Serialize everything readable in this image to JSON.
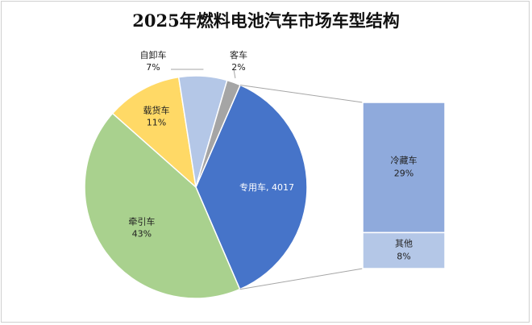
{
  "chart_data": {
    "type": "pie",
    "title": "2025年燃料电池汽车市场车型结构",
    "slices": [
      {
        "name": "专用车",
        "display": "专用车, 4017",
        "value": 4017,
        "color": "#4674c9"
      },
      {
        "name": "牵引车",
        "percent": "43%",
        "value": 43,
        "color": "#a9d18e"
      },
      {
        "name": "载货车",
        "percent": "11%",
        "value": 11,
        "color": "#ffd966"
      },
      {
        "name": "自卸车",
        "percent": "7%",
        "value": 7,
        "color": "#b4c7e7"
      },
      {
        "name": "客车",
        "percent": "2%",
        "value": 2,
        "color": "#a5a5a5"
      }
    ],
    "breakdown": [
      {
        "name": "冷藏车",
        "percent": "29%",
        "value": 29,
        "color": "#8faadc"
      },
      {
        "name": "其他",
        "percent": "8%",
        "value": 8,
        "color": "#b4c7e7"
      }
    ],
    "colors": {
      "connector": "#a6a6a6",
      "label_light": "#ffffff",
      "label_dark": "#222222"
    }
  }
}
